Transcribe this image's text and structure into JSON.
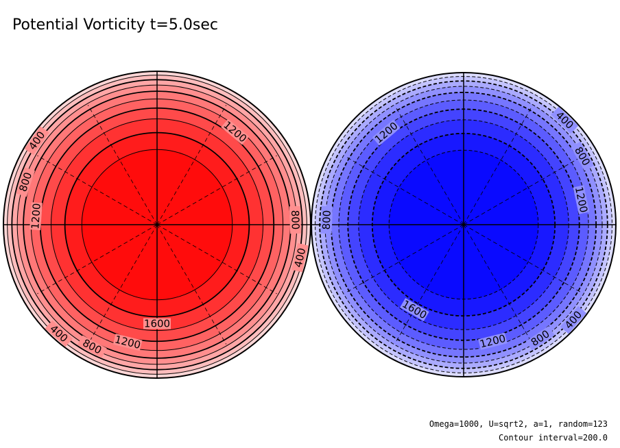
{
  "chart_data": {
    "type": "contour",
    "title": "Potential Vorticity t=5.0sec",
    "projection": "polar",
    "contour_interval": 200.0,
    "levels": [
      200,
      400,
      600,
      800,
      1000,
      1200,
      1400,
      1600,
      1800
    ],
    "annotations": [
      "Omega=1000, U=sqrt2, a=1, random=123",
      "Contour interval=200.0"
    ],
    "panels": [
      {
        "name": "left",
        "colormap": [
          "#ffd6d6",
          "#ffbdbd",
          "#ffa6a6",
          "#ff8f8f",
          "#ff7878",
          "#ff6262",
          "#ff4a4a",
          "#ff3232",
          "#ff1c1c",
          "#ff0c0c"
        ],
        "line_style": "solid",
        "labels": [
          "400",
          "800",
          "1200",
          "1200",
          "800",
          "400",
          "1600",
          "1200",
          "800",
          "400"
        ]
      },
      {
        "name": "right",
        "colormap": [
          "#dcdcff",
          "#c4c4ff",
          "#aaaaff",
          "#9090ff",
          "#7676ff",
          "#5c5cff",
          "#4444ff",
          "#2c2cff",
          "#1818ff",
          "#0a0aff"
        ],
        "line_style": "dashed",
        "labels": [
          "1200",
          "800",
          "400",
          "800",
          "1200",
          "1600",
          "1200",
          "800",
          "400"
        ]
      }
    ]
  },
  "title": "Potential Vorticity t=5.0sec",
  "footer": {
    "line1": "Omega=1000, U=sqrt2, a=1, random=123",
    "line2": "Contour interval=200.0"
  }
}
